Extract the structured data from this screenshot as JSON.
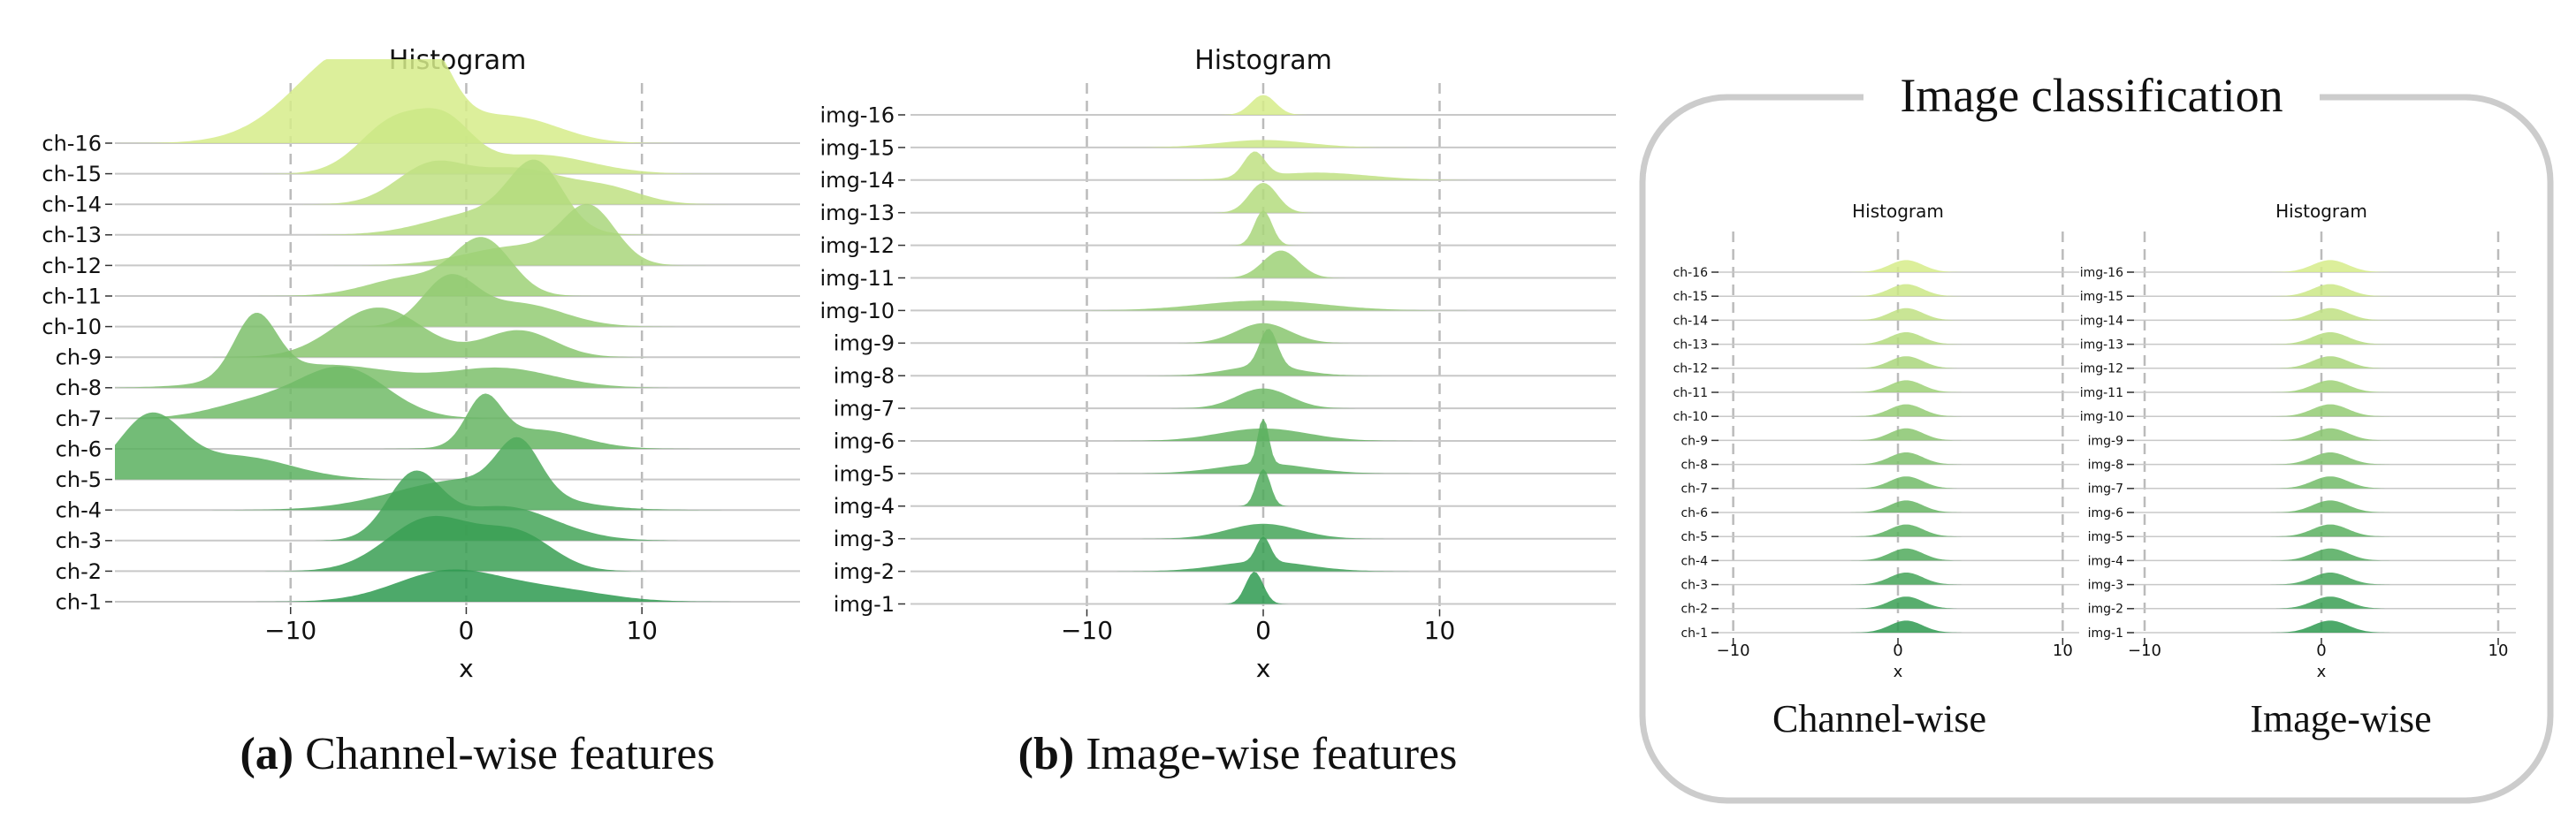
{
  "chart_data": [
    {
      "id": "a",
      "type": "ridgeline",
      "title": "Histogram",
      "xlabel": "x",
      "xlim": [
        -20,
        19
      ],
      "xticks": [
        -10,
        0,
        10
      ],
      "xtick_labels": [
        "−10",
        "0",
        "10"
      ],
      "vlines": [
        -10,
        0,
        10
      ],
      "caption_prefix": "(a)",
      "caption_text": " Channel-wise features",
      "rows": [
        {
          "label": "ch-16",
          "peaks": [
            [
              -6,
              3.5,
              2.6
            ],
            [
              -2,
              1.2,
              1.2
            ],
            [
              3,
              2.5,
              0.6
            ]
          ]
        },
        {
          "label": "ch-15",
          "peaks": [
            [
              -4,
              2.0,
              1.4
            ],
            [
              -1,
              1.5,
              1.0
            ],
            [
              4,
              3.0,
              0.5
            ]
          ]
        },
        {
          "label": "ch-14",
          "peaks": [
            [
              -2,
              2.0,
              1.0
            ],
            [
              3,
              2.5,
              0.9
            ],
            [
              8,
              2.0,
              0.4
            ]
          ]
        },
        {
          "label": "ch-13",
          "peaks": [
            [
              4,
              1.5,
              1.6
            ],
            [
              1,
              3.0,
              0.6
            ]
          ]
        },
        {
          "label": "ch-12",
          "peaks": [
            [
              7,
              1.5,
              1.4
            ],
            [
              3,
              3.0,
              0.5
            ]
          ]
        },
        {
          "label": "ch-11",
          "peaks": [
            [
              1,
              1.6,
              1.4
            ],
            [
              -3,
              2.5,
              0.5
            ]
          ]
        },
        {
          "label": "ch-10",
          "peaks": [
            [
              -1,
              1.5,
              1.2
            ],
            [
              3,
              2.5,
              0.6
            ]
          ]
        },
        {
          "label": "ch-9",
          "peaks": [
            [
              -5,
              2.5,
              1.3
            ],
            [
              3,
              2.0,
              0.7
            ]
          ]
        },
        {
          "label": "ch-8",
          "peaks": [
            [
              -12,
              1.2,
              1.6
            ],
            [
              -8,
              4.0,
              0.6
            ],
            [
              2,
              3.0,
              0.5
            ]
          ]
        },
        {
          "label": "ch-7",
          "peaks": [
            [
              -7,
              2.5,
              1.3
            ],
            [
              -12,
              2.5,
              0.4
            ]
          ]
        },
        {
          "label": "ch-6",
          "peaks": [
            [
              1,
              1.0,
              1.2
            ],
            [
              4,
              2.5,
              0.5
            ]
          ]
        },
        {
          "label": "ch-5",
          "peaks": [
            [
              -18,
              1.8,
              1.6
            ],
            [
              -13,
              3.0,
              0.6
            ]
          ]
        },
        {
          "label": "ch-4",
          "peaks": [
            [
              3,
              1.2,
              1.3
            ],
            [
              0,
              4.0,
              0.8
            ]
          ]
        },
        {
          "label": "ch-3",
          "peaks": [
            [
              -3,
              1.5,
              1.6
            ],
            [
              2,
              3.0,
              0.9
            ]
          ]
        },
        {
          "label": "ch-2",
          "peaks": [
            [
              -2,
              2.5,
              1.4
            ],
            [
              3,
              2.0,
              0.9
            ]
          ]
        },
        {
          "label": "ch-1",
          "peaks": [
            [
              -1,
              3.0,
              0.8
            ],
            [
              5,
              3.0,
              0.3
            ]
          ]
        }
      ]
    },
    {
      "id": "b",
      "type": "ridgeline",
      "title": "Histogram",
      "xlabel": "x",
      "xlim": [
        -20,
        20
      ],
      "xticks": [
        -10,
        0,
        10
      ],
      "xtick_labels": [
        "−10",
        "0",
        "10"
      ],
      "vlines": [
        -10,
        0,
        10
      ],
      "caption_prefix": "(b)",
      "caption_text": " Image-wise features",
      "rows": [
        {
          "label": "img-16",
          "peaks": [
            [
              0,
              0.7,
              0.8
            ]
          ]
        },
        {
          "label": "img-15",
          "peaks": [
            [
              0,
              2.5,
              0.3
            ]
          ]
        },
        {
          "label": "img-14",
          "peaks": [
            [
              -0.5,
              0.6,
              1.0
            ],
            [
              3,
              3.0,
              0.3
            ]
          ]
        },
        {
          "label": "img-13",
          "peaks": [
            [
              0,
              0.8,
              1.2
            ]
          ]
        },
        {
          "label": "img-12",
          "peaks": [
            [
              0,
              0.5,
              1.4
            ]
          ]
        },
        {
          "label": "img-11",
          "peaks": [
            [
              1,
              1.0,
              1.1
            ]
          ]
        },
        {
          "label": "img-10",
          "peaks": [
            [
              0,
              3.5,
              0.4
            ]
          ]
        },
        {
          "label": "img-9",
          "peaks": [
            [
              0,
              1.5,
              0.8
            ]
          ]
        },
        {
          "label": "img-8",
          "peaks": [
            [
              0.3,
              0.5,
              1.5
            ],
            [
              0,
              2.0,
              0.4
            ]
          ]
        },
        {
          "label": "img-7",
          "peaks": [
            [
              0,
              1.5,
              0.8
            ]
          ]
        },
        {
          "label": "img-6",
          "peaks": [
            [
              0,
              2.5,
              0.5
            ]
          ]
        },
        {
          "label": "img-5",
          "peaks": [
            [
              0,
              0.3,
              1.9
            ],
            [
              0,
              2.5,
              0.4
            ]
          ]
        },
        {
          "label": "img-4",
          "peaks": [
            [
              0,
              0.4,
              1.5
            ]
          ]
        },
        {
          "label": "img-3",
          "peaks": [
            [
              0,
              2.0,
              0.6
            ]
          ]
        },
        {
          "label": "img-2",
          "peaks": [
            [
              0,
              0.4,
              1.0
            ],
            [
              0,
              2.5,
              0.4
            ]
          ]
        },
        {
          "label": "img-1",
          "peaks": [
            [
              -0.5,
              0.5,
              1.3
            ]
          ]
        }
      ]
    },
    {
      "id": "c1",
      "type": "ridgeline",
      "title": "Histogram",
      "xlabel": "x",
      "xlim": [
        -11,
        11
      ],
      "xticks": [
        -10,
        0,
        10
      ],
      "xtick_labels": [
        "−10",
        "0",
        "10"
      ],
      "vlines": [
        -10,
        0,
        10
      ],
      "caption_text": "Channel-wise",
      "rows": [
        {
          "label": "ch-16",
          "peaks": [
            [
              0.5,
              1.0,
              1.0
            ]
          ]
        },
        {
          "label": "ch-15",
          "peaks": [
            [
              0.5,
              1.0,
              1.0
            ]
          ]
        },
        {
          "label": "ch-14",
          "peaks": [
            [
              0.5,
              1.0,
              1.0
            ]
          ]
        },
        {
          "label": "ch-13",
          "peaks": [
            [
              0.5,
              1.0,
              1.0
            ]
          ]
        },
        {
          "label": "ch-12",
          "peaks": [
            [
              0.5,
              1.0,
              1.0
            ]
          ]
        },
        {
          "label": "ch-11",
          "peaks": [
            [
              0.5,
              1.0,
              1.0
            ]
          ]
        },
        {
          "label": "ch-10",
          "peaks": [
            [
              0.5,
              1.0,
              1.0
            ]
          ]
        },
        {
          "label": "ch-9",
          "peaks": [
            [
              0.5,
              1.0,
              1.0
            ]
          ]
        },
        {
          "label": "ch-8",
          "peaks": [
            [
              0.5,
              1.0,
              1.0
            ]
          ]
        },
        {
          "label": "ch-7",
          "peaks": [
            [
              0.5,
              1.0,
              1.0
            ]
          ]
        },
        {
          "label": "ch-6",
          "peaks": [
            [
              0.5,
              1.0,
              1.0
            ]
          ]
        },
        {
          "label": "ch-5",
          "peaks": [
            [
              0.5,
              1.0,
              1.0
            ]
          ]
        },
        {
          "label": "ch-4",
          "peaks": [
            [
              0.5,
              1.0,
              1.0
            ]
          ]
        },
        {
          "label": "ch-3",
          "peaks": [
            [
              0.5,
              1.0,
              1.0
            ]
          ]
        },
        {
          "label": "ch-2",
          "peaks": [
            [
              0.5,
              1.0,
              1.0
            ]
          ]
        },
        {
          "label": "ch-1",
          "peaks": [
            [
              0.5,
              1.0,
              1.0
            ]
          ]
        }
      ]
    },
    {
      "id": "c2",
      "type": "ridgeline",
      "title": "Histogram",
      "xlabel": "x",
      "xlim": [
        -11,
        11
      ],
      "xticks": [
        -10,
        0,
        10
      ],
      "xtick_labels": [
        "−10",
        "0",
        "10"
      ],
      "vlines": [
        -10,
        0,
        10
      ],
      "caption_text": "Image-wise",
      "rows": [
        {
          "label": "img-16",
          "peaks": [
            [
              0.5,
              1.0,
              1.0
            ]
          ]
        },
        {
          "label": "img-15",
          "peaks": [
            [
              0.5,
              1.0,
              1.0
            ]
          ]
        },
        {
          "label": "img-14",
          "peaks": [
            [
              0.5,
              1.0,
              1.0
            ]
          ]
        },
        {
          "label": "img-13",
          "peaks": [
            [
              0.5,
              1.0,
              1.0
            ]
          ]
        },
        {
          "label": "img-12",
          "peaks": [
            [
              0.5,
              1.0,
              1.0
            ]
          ]
        },
        {
          "label": "img-11",
          "peaks": [
            [
              0.5,
              1.0,
              1.0
            ]
          ]
        },
        {
          "label": "img-10",
          "peaks": [
            [
              0.5,
              1.0,
              1.0
            ]
          ]
        },
        {
          "label": "img-9",
          "peaks": [
            [
              0.5,
              1.0,
              1.0
            ]
          ]
        },
        {
          "label": "img-8",
          "peaks": [
            [
              0.5,
              1.0,
              1.0
            ]
          ]
        },
        {
          "label": "img-7",
          "peaks": [
            [
              0.5,
              1.0,
              1.0
            ]
          ]
        },
        {
          "label": "img-6",
          "peaks": [
            [
              0.5,
              1.0,
              1.0
            ]
          ]
        },
        {
          "label": "img-5",
          "peaks": [
            [
              0.5,
              1.0,
              1.0
            ]
          ]
        },
        {
          "label": "img-4",
          "peaks": [
            [
              0.5,
              1.0,
              1.0
            ]
          ]
        },
        {
          "label": "img-3",
          "peaks": [
            [
              0.5,
              1.0,
              1.0
            ]
          ]
        },
        {
          "label": "img-2",
          "peaks": [
            [
              0.5,
              1.0,
              1.0
            ]
          ]
        },
        {
          "label": "img-1",
          "peaks": [
            [
              0.5,
              1.0,
              1.0
            ]
          ]
        }
      ]
    }
  ],
  "panel_c": {
    "title": "Image classification",
    "frame_color": "#cccccc"
  },
  "colors": {
    "top_row": "#d6ec8a",
    "bottom_row": "#2e9a50",
    "row_line": "#c8c8c8",
    "vline": "#bbbbbb"
  }
}
